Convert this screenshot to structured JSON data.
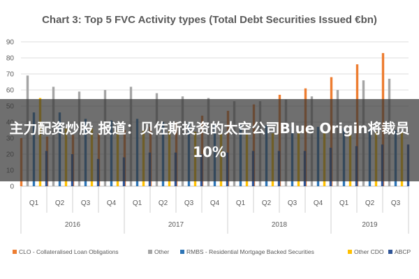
{
  "chart_data": {
    "type": "bar",
    "title": "Chart 3: Top 5 FVC Activity types (Total Debt Securities Issued €bn)",
    "xlabel": "",
    "ylabel": "",
    "ylim": [
      0,
      90
    ],
    "yticks": [
      0,
      10,
      20,
      30,
      40,
      50,
      60,
      70,
      80,
      90
    ],
    "grid": true,
    "legend_position": "bottom",
    "categories": [
      "Q1",
      "Q2",
      "Q3",
      "Q4",
      "Q1",
      "Q2",
      "Q3",
      "Q4",
      "Q1",
      "Q2",
      "Q3",
      "Q4",
      "Q1",
      "Q2",
      "Q3"
    ],
    "year_groups": [
      {
        "label": "2016",
        "count": 4
      },
      {
        "label": "2017",
        "count": 4
      },
      {
        "label": "2018",
        "count": 4
      },
      {
        "label": "2019",
        "count": 3
      }
    ],
    "series": [
      {
        "name": "CLO - Collateralised Loan Obligations",
        "color": "#ed7d31",
        "values": [
          30,
          31,
          32,
          33,
          35,
          37,
          40,
          44,
          47,
          51,
          57,
          61,
          68,
          76,
          83
        ]
      },
      {
        "name": "Other",
        "color": "#a5a5a5",
        "values": [
          69,
          62,
          59,
          60,
          62,
          58,
          56,
          55,
          53,
          53,
          54,
          56,
          60,
          66,
          67
        ]
      },
      {
        "name": "RMBS - Residential Mortgage Backed Securities",
        "color": "#2e75b6",
        "values": [
          46,
          46,
          42,
          41,
          42,
          40,
          40,
          39,
          38,
          38,
          37,
          37,
          36,
          36,
          35
        ]
      },
      {
        "name": "Other CDO",
        "color": "#ffc000",
        "values": [
          55,
          36,
          36,
          35,
          35,
          35,
          34,
          33,
          33,
          33,
          33,
          33,
          34,
          34,
          34
        ]
      },
      {
        "name": "ABCP",
        "color": "#2f5597",
        "values": [
          22,
          20,
          17,
          18,
          21,
          21,
          20,
          21,
          22,
          22,
          22,
          24,
          25,
          26,
          26
        ]
      }
    ]
  },
  "overlay": {
    "text": "主力配资炒股 报道：贝佐斯投资的太空公司Blue Origin将裁员10%"
  }
}
